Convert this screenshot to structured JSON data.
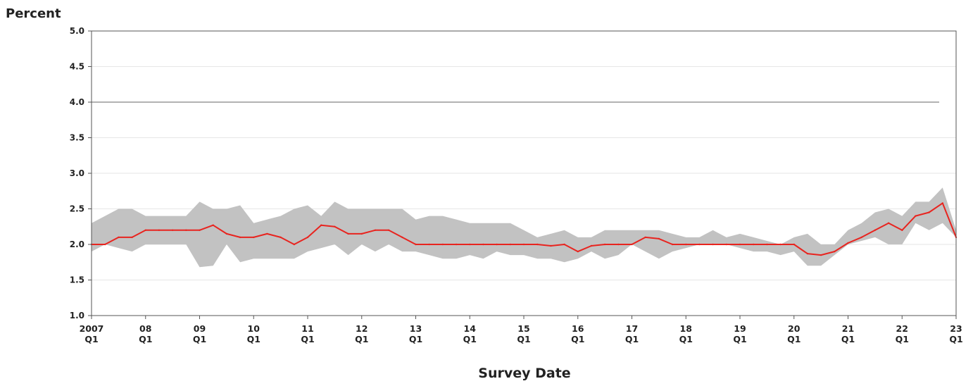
{
  "chart_data": {
    "type": "line",
    "ylabel": "Percent",
    "xlabel": "Survey Date",
    "ylim": [
      1.0,
      5.0
    ],
    "yticks": [
      "1.0",
      "1.5",
      "2.0",
      "2.5",
      "3.0",
      "3.5",
      "4.0",
      "4.5",
      "5.0"
    ],
    "xticks": [
      {
        "top": "2007",
        "bottom": "Q1"
      },
      {
        "top": "08",
        "bottom": "Q1"
      },
      {
        "top": "09",
        "bottom": "Q1"
      },
      {
        "top": "10",
        "bottom": "Q1"
      },
      {
        "top": "11",
        "bottom": "Q1"
      },
      {
        "top": "12",
        "bottom": "Q1"
      },
      {
        "top": "13",
        "bottom": "Q1"
      },
      {
        "top": "14",
        "bottom": "Q1"
      },
      {
        "top": "15",
        "bottom": "Q1"
      },
      {
        "top": "16",
        "bottom": "Q1"
      },
      {
        "top": "17",
        "bottom": "Q1"
      },
      {
        "top": "18",
        "bottom": "Q1"
      },
      {
        "top": "19",
        "bottom": "Q1"
      },
      {
        "top": "20",
        "bottom": "Q1"
      },
      {
        "top": "21",
        "bottom": "Q1"
      },
      {
        "top": "22",
        "bottom": "Q1"
      },
      {
        "top": "23",
        "bottom": "Q1"
      }
    ],
    "x": [
      "2007 Q1",
      "2007 Q2",
      "2007 Q3",
      "2007 Q4",
      "2008 Q1",
      "2008 Q2",
      "2008 Q3",
      "2008 Q4",
      "2009 Q1",
      "2009 Q2",
      "2009 Q3",
      "2009 Q4",
      "2010 Q1",
      "2010 Q2",
      "2010 Q3",
      "2010 Q4",
      "2011 Q1",
      "2011 Q2",
      "2011 Q3",
      "2011 Q4",
      "2012 Q1",
      "2012 Q2",
      "2012 Q3",
      "2012 Q4",
      "2013 Q1",
      "2013 Q2",
      "2013 Q3",
      "2013 Q4",
      "2014 Q1",
      "2014 Q2",
      "2014 Q3",
      "2014 Q4",
      "2015 Q1",
      "2015 Q2",
      "2015 Q3",
      "2015 Q4",
      "2016 Q1",
      "2016 Q2",
      "2016 Q3",
      "2016 Q4",
      "2017 Q1",
      "2017 Q2",
      "2017 Q3",
      "2017 Q4",
      "2018 Q1",
      "2018 Q2",
      "2018 Q3",
      "2018 Q4",
      "2019 Q1",
      "2019 Q2",
      "2019 Q3",
      "2019 Q4",
      "2020 Q1",
      "2020 Q2",
      "2020 Q3",
      "2020 Q4",
      "2021 Q1",
      "2021 Q2",
      "2021 Q3",
      "2021 Q4",
      "2022 Q1",
      "2022 Q2",
      "2022 Q3",
      "2022 Q4",
      "2023 Q1"
    ],
    "median": [
      2.0,
      2.0,
      2.1,
      2.1,
      2.2,
      2.2,
      2.2,
      2.2,
      2.2,
      2.27,
      2.15,
      2.1,
      2.1,
      2.15,
      2.1,
      2.0,
      2.1,
      2.27,
      2.25,
      2.15,
      2.15,
      2.2,
      2.2,
      2.1,
      2.0,
      2.0,
      2.0,
      2.0,
      2.0,
      2.0,
      2.0,
      2.0,
      2.0,
      2.0,
      1.98,
      2.0,
      1.9,
      1.98,
      2.0,
      2.0,
      2.0,
      2.1,
      2.08,
      2.0,
      2.0,
      2.0,
      2.0,
      2.0,
      2.0,
      2.0,
      2.0,
      2.0,
      2.0,
      1.87,
      1.85,
      1.9,
      2.02,
      2.1,
      2.2,
      2.3,
      2.2,
      2.4,
      2.45,
      2.58,
      2.1
    ],
    "band_upper": [
      2.3,
      2.4,
      2.5,
      2.5,
      2.4,
      2.4,
      2.4,
      2.4,
      2.6,
      2.5,
      2.5,
      2.55,
      2.3,
      2.35,
      2.4,
      2.5,
      2.55,
      2.4,
      2.6,
      2.5,
      2.5,
      2.5,
      2.5,
      2.5,
      2.35,
      2.4,
      2.4,
      2.35,
      2.3,
      2.3,
      2.3,
      2.3,
      2.2,
      2.1,
      2.15,
      2.2,
      2.1,
      2.1,
      2.2,
      2.2,
      2.2,
      2.2,
      2.2,
      2.15,
      2.1,
      2.1,
      2.2,
      2.1,
      2.15,
      2.1,
      2.05,
      2.0,
      2.1,
      2.15,
      2.0,
      2.0,
      2.2,
      2.3,
      2.45,
      2.5,
      2.4,
      2.6,
      2.6,
      2.8,
      2.2
    ],
    "band_lower": [
      1.9,
      2.0,
      1.95,
      1.9,
      2.0,
      2.0,
      2.0,
      2.0,
      1.68,
      1.7,
      2.0,
      1.75,
      1.8,
      1.8,
      1.8,
      1.8,
      1.9,
      1.95,
      2.0,
      1.85,
      2.0,
      1.9,
      2.0,
      1.9,
      1.9,
      1.85,
      1.8,
      1.8,
      1.85,
      1.8,
      1.9,
      1.85,
      1.85,
      1.8,
      1.8,
      1.75,
      1.8,
      1.9,
      1.8,
      1.85,
      2.0,
      1.9,
      1.8,
      1.9,
      1.95,
      2.0,
      2.0,
      2.0,
      1.95,
      1.9,
      1.9,
      1.85,
      1.9,
      1.7,
      1.7,
      1.85,
      2.0,
      2.05,
      2.1,
      2.0,
      2.0,
      2.3,
      2.2,
      2.3,
      2.1
    ],
    "reference_line": 4.0,
    "grid": true,
    "colors": {
      "median": "#e8241f",
      "band": "#c2c2c2",
      "axis": "#555555",
      "reference": "#666666",
      "grid": "#e6e6e6"
    }
  }
}
